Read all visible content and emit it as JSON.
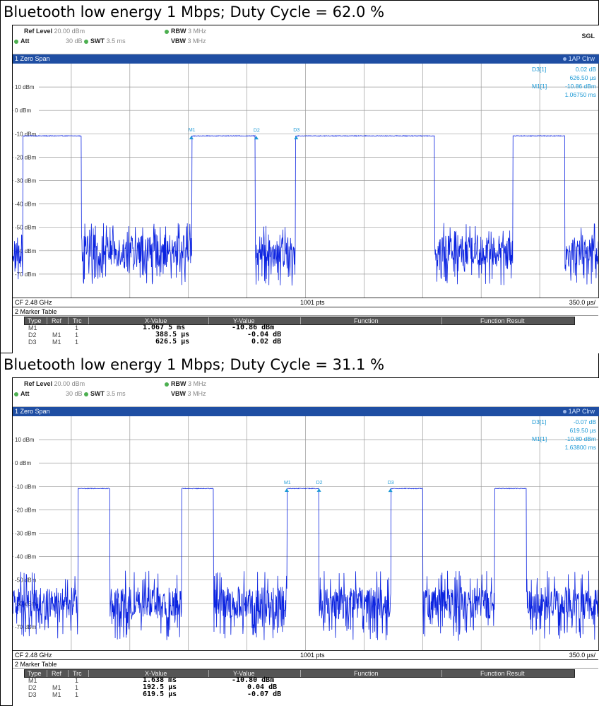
{
  "colors": {
    "trace": "#0b23e0",
    "marker_readout": "#1e9ad6",
    "title_bar": "#1f4ea3",
    "grid": "#9a9a9a",
    "status_dot": "#4caf50"
  },
  "icons": [
    "status-dot-icon",
    "marker-triangle-icon"
  ],
  "panels": [
    {
      "caption": "Bluetooth low energy 1 Mbps; Duty Cycle = 62.0 %",
      "settings": {
        "ref_level_label": "Ref Level",
        "ref_level_value": "20.00 dBm",
        "att_label": "Att",
        "att_value": "30 dB",
        "swt_label": "SWT",
        "swt_value": "3.5 ms",
        "rbw_label": "RBW",
        "rbw_value": "3 MHz",
        "vbw_label": "VBW",
        "vbw_value": "3 MHz",
        "mode": "SGL"
      },
      "window_title": "1 Zero Span",
      "trace_label": "1AP Clrw",
      "readout": {
        "d3_label": "D3[1]",
        "d3_value": "0.02 dB",
        "d3_time": "626.50 µs",
        "m1_label": "M1[1]",
        "m1_value": "-10.86 dBm",
        "m1_time": "1.06750 ms"
      },
      "y_ticks": [
        "10 dBm",
        "0 dBm",
        "-10 dBm",
        "-20 dBm",
        "-30 dBm",
        "-40 dBm",
        "-50 dBm",
        "-60 dBm",
        "-70 dBm"
      ],
      "footer": {
        "center": "CF 2.48 GHz",
        "points": "1001 pts",
        "per_div": "350.0 µs/"
      },
      "marker_table_title": "2 Marker Table",
      "columns": [
        "Type",
        "Ref",
        "Trc",
        "X-Value",
        "Y-Value",
        "Function",
        "Function Result"
      ],
      "rows": [
        {
          "type": "M1",
          "ref": "",
          "trc": "1",
          "x": "1.067 5 ms",
          "y": "-10.86 dBm"
        },
        {
          "type": "D2",
          "ref": "M1",
          "trc": "1",
          "x": "388.5 µs",
          "y": "-0.04 dB"
        },
        {
          "type": "D3",
          "ref": "M1",
          "trc": "1",
          "x": "626.5 µs",
          "y": "0.02 dB"
        }
      ],
      "markers": [
        {
          "name": "M1",
          "time_ms": 1.0675,
          "level_dbm": -10.86
        },
        {
          "name": "D2",
          "time_ms": 1.456,
          "level_dbm": -10.9
        },
        {
          "name": "D3",
          "time_ms": 1.694,
          "level_dbm": -10.84
        }
      ],
      "trace": {
        "on_level_dbm": -10.9,
        "off_band_dbm": [
          -75,
          -48
        ],
        "off_median_dbm": -60,
        "duty_cycle_percent": 62.0,
        "bursts_ms": [
          [
            0.06,
            0.41
          ],
          [
            1.07,
            1.45
          ],
          [
            1.69,
            2.52
          ],
          [
            2.99,
            3.3
          ]
        ]
      }
    },
    {
      "caption": "Bluetooth low energy 1 Mbps; Duty Cycle = 31.1 %",
      "settings": {
        "ref_level_label": "Ref Level",
        "ref_level_value": "20.00 dBm",
        "att_label": "Att",
        "att_value": "30 dB",
        "swt_label": "SWT",
        "swt_value": "3.5 ms",
        "rbw_label": "RBW",
        "rbw_value": "3 MHz",
        "vbw_label": "VBW",
        "vbw_value": "3 MHz",
        "mode": ""
      },
      "window_title": "1 Zero Span",
      "trace_label": "1AP Clrw",
      "readout": {
        "d3_label": "D3[1]",
        "d3_value": "-0.07 dB",
        "d3_time": "619.50 µs",
        "m1_label": "M1[1]",
        "m1_value": "-10.80 dBm",
        "m1_time": "1.63800 ms"
      },
      "y_ticks": [
        "10 dBm",
        "0 dBm",
        "-10 dBm",
        "-20 dBm",
        "-30 dBm",
        "-40 dBm",
        "-50 dBm",
        "-60 dBm",
        "-70 dBm"
      ],
      "footer": {
        "center": "CF 2.48 GHz",
        "points": "1001 pts",
        "per_div": "350.0 µs/"
      },
      "marker_table_title": "2 Marker Table",
      "columns": [
        "Type",
        "Ref",
        "Trc",
        "X-Value",
        "Y-Value",
        "Function",
        "Function Result"
      ],
      "rows": [
        {
          "type": "M1",
          "ref": "",
          "trc": "1",
          "x": "1.638 ms",
          "y": "-10.80 dBm"
        },
        {
          "type": "D2",
          "ref": "M1",
          "trc": "1",
          "x": "192.5 µs",
          "y": "0.04 dB"
        },
        {
          "type": "D3",
          "ref": "M1",
          "trc": "1",
          "x": "619.5 µs",
          "y": "-0.07 dB"
        }
      ],
      "markers": [
        {
          "name": "M1",
          "time_ms": 1.638,
          "level_dbm": -10.8
        },
        {
          "name": "D2",
          "time_ms": 1.8305,
          "level_dbm": -10.76
        },
        {
          "name": "D3",
          "time_ms": 2.2575,
          "level_dbm": -10.87
        }
      ],
      "trace": {
        "on_level_dbm": -10.9,
        "off_band_dbm": [
          -76,
          -46
        ],
        "off_median_dbm": -60,
        "duty_cycle_percent": 31.1,
        "bursts_ms": [
          [
            0.39,
            0.58
          ],
          [
            1.01,
            1.2
          ],
          [
            1.64,
            1.83
          ],
          [
            2.26,
            2.45
          ],
          [
            2.88,
            3.07
          ]
        ]
      }
    }
  ]
}
